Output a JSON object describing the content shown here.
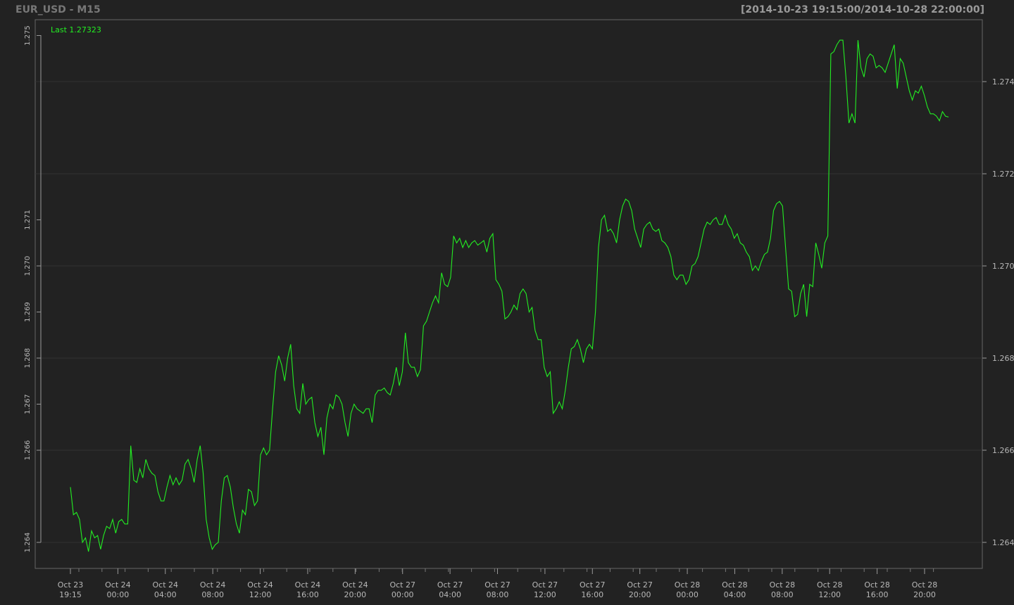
{
  "header": {
    "title": "EUR_USD - M15",
    "date_range": "[2014-10-23 19:15:00/2014-10-28 22:00:00]"
  },
  "legend": {
    "last_label": "Last 1.27323"
  },
  "colors": {
    "background": "#222222",
    "series": "#22ee22",
    "grid": "#333333",
    "frame": "#666666",
    "text": "#b8b8b8"
  },
  "chart_data": {
    "type": "line",
    "title": "EUR_USD - M15",
    "series": [
      {
        "name": "",
        "values": []
      }
    ],
    "left_axis_ticks": [
      "1.275",
      "1.271",
      "1.270",
      "1.269",
      "1.268",
      "1.267",
      "1.266",
      "1.264"
    ],
    "right_axis_ticks": [
      "1.274",
      "1.272",
      "1.270",
      "1.268",
      "1.266",
      "1.264"
    ],
    "x_tick_labels": [
      [
        "Oct 23",
        "19:15"
      ],
      [
        "Oct 24",
        "00:00"
      ],
      [
        "Oct 24",
        "04:00"
      ],
      [
        "Oct 24",
        "08:00"
      ],
      [
        "Oct 24",
        "12:00"
      ],
      [
        "Oct 24",
        "16:00"
      ],
      [
        "Oct 24",
        "20:00"
      ],
      [
        "Oct 27",
        "00:00"
      ],
      [
        "Oct 27",
        "04:00"
      ],
      [
        "Oct 27",
        "08:00"
      ],
      [
        "Oct 27",
        "12:00"
      ],
      [
        "Oct 27",
        "16:00"
      ],
      [
        "Oct 27",
        "20:00"
      ],
      [
        "Oct 28",
        "00:00"
      ],
      [
        "Oct 28",
        "04:00"
      ],
      [
        "Oct 28",
        "08:00"
      ],
      [
        "Oct 28",
        "12:00"
      ],
      [
        "Oct 28",
        "16:00"
      ],
      [
        "Oct 28",
        "20:00"
      ]
    ],
    "values": [
      1.2652,
      1.2646,
      1.26465,
      1.2645,
      1.264,
      1.2641,
      1.2638,
      1.26425,
      1.2641,
      1.26415,
      1.26385,
      1.26415,
      1.26435,
      1.2643,
      1.2645,
      1.2642,
      1.26445,
      1.2645,
      1.2644,
      1.2644,
      1.2661,
      1.26535,
      1.2653,
      1.2656,
      1.2654,
      1.2658,
      1.2656,
      1.2655,
      1.26545,
      1.2651,
      1.2649,
      1.2649,
      1.2652,
      1.26545,
      1.26525,
      1.2654,
      1.26525,
      1.26535,
      1.2657,
      1.2658,
      1.2656,
      1.2653,
      1.2658,
      1.2661,
      1.2655,
      1.2645,
      1.2641,
      1.26385,
      1.26395,
      1.264,
      1.2649,
      1.2654,
      1.26545,
      1.2652,
      1.26475,
      1.2644,
      1.2642,
      1.2647,
      1.2646,
      1.26515,
      1.2651,
      1.2648,
      1.2649,
      1.2659,
      1.26605,
      1.2659,
      1.266,
      1.2669,
      1.2677,
      1.26805,
      1.26785,
      1.2675,
      1.268,
      1.2683,
      1.2674,
      1.2669,
      1.2668,
      1.26745,
      1.267,
      1.2671,
      1.26715,
      1.2666,
      1.2663,
      1.2665,
      1.2659,
      1.2667,
      1.267,
      1.2669,
      1.2672,
      1.26715,
      1.267,
      1.2666,
      1.2663,
      1.2668,
      1.267,
      1.2669,
      1.26685,
      1.2668,
      1.2669,
      1.2669,
      1.2666,
      1.2672,
      1.2673,
      1.2673,
      1.26735,
      1.26725,
      1.2672,
      1.26745,
      1.2678,
      1.2674,
      1.2677,
      1.26855,
      1.2679,
      1.2678,
      1.2678,
      1.2676,
      1.26775,
      1.2687,
      1.2688,
      1.269,
      1.2692,
      1.26935,
      1.2692,
      1.26985,
      1.2696,
      1.26955,
      1.26975,
      1.27065,
      1.2705,
      1.2706,
      1.2704,
      1.27055,
      1.2704,
      1.2705,
      1.27055,
      1.27045,
      1.2705,
      1.27055,
      1.2703,
      1.2706,
      1.2707,
      1.2697,
      1.2696,
      1.26945,
      1.26885,
      1.2689,
      1.269,
      1.26915,
      1.26905,
      1.2694,
      1.2695,
      1.2694,
      1.269,
      1.2691,
      1.2686,
      1.2684,
      1.2684,
      1.2678,
      1.2676,
      1.2677,
      1.2668,
      1.2669,
      1.26705,
      1.2669,
      1.2673,
      1.2678,
      1.2682,
      1.26825,
      1.2684,
      1.2682,
      1.2679,
      1.2682,
      1.2683,
      1.2682,
      1.269,
      1.2704,
      1.271,
      1.2711,
      1.27075,
      1.2708,
      1.2707,
      1.2705,
      1.271,
      1.2713,
      1.27145,
      1.2714,
      1.2712,
      1.2708,
      1.2706,
      1.2704,
      1.2708,
      1.2709,
      1.27095,
      1.2708,
      1.27075,
      1.2708,
      1.27055,
      1.2705,
      1.2704,
      1.2702,
      1.2698,
      1.2697,
      1.2698,
      1.2698,
      1.2696,
      1.2697,
      1.27,
      1.27005,
      1.2702,
      1.2705,
      1.2708,
      1.27095,
      1.2709,
      1.271,
      1.27105,
      1.2709,
      1.2709,
      1.2711,
      1.2709,
      1.2708,
      1.2706,
      1.2707,
      1.2705,
      1.27045,
      1.2703,
      1.2702,
      1.2699,
      1.27,
      1.2699,
      1.2701,
      1.27025,
      1.2703,
      1.2706,
      1.2712,
      1.27135,
      1.2714,
      1.2713,
      1.2704,
      1.2695,
      1.26945,
      1.2689,
      1.26895,
      1.2694,
      1.2696,
      1.2689,
      1.2696,
      1.26955,
      1.2705,
      1.27025,
      1.26995,
      1.2705,
      1.27065,
      1.2746,
      1.27465,
      1.2748,
      1.2749,
      1.2749,
      1.2741,
      1.2731,
      1.2733,
      1.2731,
      1.2749,
      1.2743,
      1.2741,
      1.2745,
      1.2746,
      1.27455,
      1.2743,
      1.27435,
      1.2743,
      1.2742,
      1.2744,
      1.2746,
      1.2748,
      1.27385,
      1.2745,
      1.2744,
      1.2741,
      1.2738,
      1.2736,
      1.2738,
      1.27375,
      1.2739,
      1.2737,
      1.27345,
      1.2733,
      1.2733,
      1.27325,
      1.27315,
      1.27335,
      1.27325,
      1.27323
    ]
  }
}
